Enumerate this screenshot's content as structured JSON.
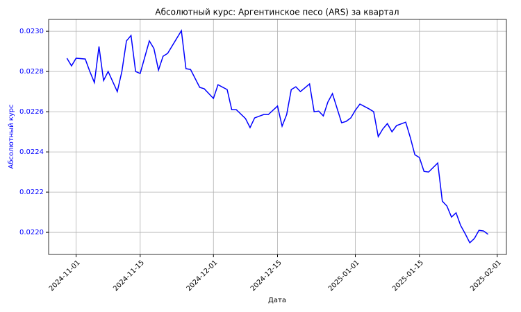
{
  "chart_data": {
    "type": "line",
    "title": "Абсолютный курс: Аргентинское песо (ARS) за квартал",
    "xlabel": "Дата",
    "ylabel": "Абсолютный курс",
    "ylabel_color": "blue",
    "grid": true,
    "x": [
      "2024-10-30",
      "2024-10-31",
      "2024-11-01",
      "2024-11-03",
      "2024-11-04",
      "2024-11-05",
      "2024-11-06",
      "2024-11-07",
      "2024-11-08",
      "2024-11-10",
      "2024-11-11",
      "2024-11-12",
      "2024-11-13",
      "2024-11-14",
      "2024-11-15",
      "2024-11-17",
      "2024-11-18",
      "2024-11-19",
      "2024-11-20",
      "2024-11-21",
      "2024-11-24",
      "2024-11-25",
      "2024-11-26",
      "2024-11-28",
      "2024-11-29",
      "2024-12-01",
      "2024-12-02",
      "2024-12-04",
      "2024-12-05",
      "2024-12-06",
      "2024-12-08",
      "2024-12-09",
      "2024-12-10",
      "2024-12-12",
      "2024-12-13",
      "2024-12-15",
      "2024-12-16",
      "2024-12-17",
      "2024-12-18",
      "2024-12-19",
      "2024-12-20",
      "2024-12-22",
      "2024-12-23",
      "2024-12-24",
      "2024-12-25",
      "2024-12-26",
      "2024-12-27",
      "2024-12-29",
      "2024-12-30",
      "2024-12-31",
      "2025-01-01",
      "2025-01-02",
      "2025-01-04",
      "2025-01-05",
      "2025-01-06",
      "2025-01-07",
      "2025-01-08",
      "2025-01-09",
      "2025-01-10",
      "2025-01-12",
      "2025-01-13",
      "2025-01-14",
      "2025-01-15",
      "2025-01-16",
      "2025-01-17",
      "2025-01-19",
      "2025-01-20",
      "2025-01-21",
      "2025-01-22",
      "2025-01-23",
      "2025-01-24",
      "2025-01-25",
      "2025-01-26",
      "2025-01-27",
      "2025-01-28",
      "2025-01-29",
      "2025-01-30"
    ],
    "series": [
      {
        "name": "ARS",
        "color": "#0000ff",
        "values": [
          0.022866,
          0.022828,
          0.022866,
          0.022862,
          0.0228,
          0.022745,
          0.022924,
          0.022755,
          0.0228,
          0.0227,
          0.0228,
          0.022952,
          0.022979,
          0.0228,
          0.02279,
          0.022952,
          0.022914,
          0.022807,
          0.022876,
          0.02289,
          0.023003,
          0.022814,
          0.02281,
          0.022721,
          0.022714,
          0.022666,
          0.022734,
          0.02271,
          0.02261,
          0.02261,
          0.022566,
          0.022521,
          0.022569,
          0.022586,
          0.022586,
          0.022628,
          0.022528,
          0.022586,
          0.02271,
          0.022724,
          0.0227,
          0.022738,
          0.0226,
          0.022603,
          0.022579,
          0.022648,
          0.02269,
          0.022545,
          0.022552,
          0.022569,
          0.022607,
          0.022638,
          0.022614,
          0.0226,
          0.022476,
          0.022514,
          0.022541,
          0.0225,
          0.022531,
          0.022548,
          0.022472,
          0.022386,
          0.022372,
          0.022303,
          0.0223,
          0.022345,
          0.022155,
          0.022131,
          0.022076,
          0.022097,
          0.022034,
          0.021993,
          0.021948,
          0.021969,
          0.02201,
          0.022007,
          0.02199
        ]
      }
    ],
    "xlim": [
      "2024-10-26",
      "2025-02-03"
    ],
    "xticks": [
      "2024-11-01",
      "2024-11-15",
      "2024-12-01",
      "2024-12-15",
      "2025-01-01",
      "2025-01-15",
      "2025-02-01"
    ],
    "ylim": [
      0.02189,
      0.023059
    ],
    "yticks": [
      {
        "value": 0.022,
        "label": "0.0220"
      },
      {
        "value": 0.0222,
        "label": "0.0222"
      },
      {
        "value": 0.0224,
        "label": "0.0224"
      },
      {
        "value": 0.0226,
        "label": "0.0226"
      },
      {
        "value": 0.0228,
        "label": "0.0228"
      },
      {
        "value": 0.023,
        "label": "0.0230"
      }
    ]
  }
}
